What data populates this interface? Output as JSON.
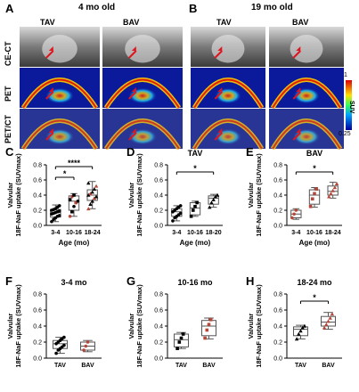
{
  "image_panels": {
    "A": {
      "letter": "A",
      "title": "4 mo old",
      "cols": [
        "TAV",
        "BAV"
      ]
    },
    "B": {
      "letter": "B",
      "title": "19 mo old",
      "cols": [
        "TAV",
        "BAV"
      ]
    },
    "rows": [
      "CE-CT",
      "PET",
      "PET/CT"
    ],
    "colorbar": {
      "max": "1",
      "min": "0.25",
      "label": "SUV"
    },
    "colors": {
      "ct_bg": "#2a2a2a",
      "pet_bg": "#0a1a9a",
      "arrow": "#e0141e"
    }
  },
  "chart_data": [
    {
      "letter": "C",
      "type": "box",
      "title": "",
      "categories": [
        "3-4",
        "10-16",
        "18-24"
      ],
      "ylabel_1": "Valvular",
      "ylabel_2": "18F-NaF uptake (SUVmax)",
      "xlabel": "Age (mo)",
      "ylim": [
        0,
        0.8
      ],
      "yticks": [
        "0.0",
        "0.2",
        "0.4",
        "0.6",
        "0.8"
      ],
      "points": [
        [
          0.05,
          0.08,
          0.1,
          0.12,
          0.13,
          0.15,
          0.16,
          0.17,
          0.18,
          0.19,
          0.2,
          0.21,
          0.22,
          0.24,
          0.26
        ],
        [
          0.12,
          0.18,
          0.25,
          0.3,
          0.32,
          0.34,
          0.38,
          0.4
        ],
        [
          0.22,
          0.28,
          0.32,
          0.36,
          0.38,
          0.4,
          0.42,
          0.44,
          0.48,
          0.52,
          0.56
        ]
      ],
      "box": [
        [
          0.05,
          0.11,
          0.17,
          0.21,
          0.27
        ],
        [
          0.12,
          0.2,
          0.32,
          0.39,
          0.42
        ],
        [
          0.22,
          0.33,
          0.4,
          0.47,
          0.58
        ]
      ],
      "markers": [
        "circle",
        "mixed",
        "triangle"
      ],
      "sig": [
        {
          "from": 0,
          "to": 1,
          "label": "*"
        },
        {
          "from": 0,
          "to": 2,
          "label": "****"
        }
      ]
    },
    {
      "letter": "D",
      "type": "box",
      "title": "TAV",
      "categories": [
        "3-4",
        "10-16",
        "18-20"
      ],
      "ylabel_1": "Valvular",
      "ylabel_2": "18F-NaF uptake (SUVmax)",
      "xlabel": "Age (mo)",
      "ylim": [
        0,
        0.8
      ],
      "yticks": [
        "0.0",
        "0.2",
        "0.4",
        "0.6",
        "0.8"
      ],
      "points": [
        [
          0.06,
          0.1,
          0.12,
          0.14,
          0.16,
          0.18,
          0.2,
          0.22,
          0.24,
          0.26
        ],
        [
          0.12,
          0.2,
          0.25,
          0.3
        ],
        [
          0.24,
          0.3,
          0.34,
          0.38,
          0.4
        ]
      ],
      "box": [
        [
          0.06,
          0.12,
          0.18,
          0.22,
          0.26
        ],
        [
          0.12,
          0.14,
          0.23,
          0.3,
          0.32
        ],
        [
          0.24,
          0.28,
          0.36,
          0.39,
          0.41
        ]
      ],
      "markers": [
        "circle",
        "square",
        "triangle"
      ],
      "sig": [
        {
          "from": 0,
          "to": 2,
          "label": "*"
        }
      ]
    },
    {
      "letter": "E",
      "type": "box",
      "title": "BAV",
      "categories": [
        "3-4",
        "10-16",
        "18-24"
      ],
      "ylabel_1": "Valvular",
      "ylabel_2": "18F-NaF uptake (SUVmax)",
      "xlabel": "Age (mo)",
      "ylim": [
        0,
        0.8
      ],
      "yticks": [
        "0.0",
        "0.2",
        "0.4",
        "0.6",
        "0.8"
      ],
      "points": [
        [
          0.1,
          0.15,
          0.2
        ],
        [
          0.25,
          0.35,
          0.42,
          0.48
        ],
        [
          0.38,
          0.42,
          0.46,
          0.5,
          0.55
        ]
      ],
      "box": [
        [
          0.08,
          0.1,
          0.15,
          0.2,
          0.22
        ],
        [
          0.24,
          0.28,
          0.4,
          0.47,
          0.5
        ],
        [
          0.36,
          0.4,
          0.45,
          0.52,
          0.57
        ]
      ],
      "markers": [
        "circle",
        "square",
        "triangle"
      ],
      "sig": [
        {
          "from": 0,
          "to": 2,
          "label": "*"
        }
      ]
    },
    {
      "letter": "F",
      "type": "box",
      "title": "3-4 mo",
      "categories": [
        "TAV",
        "BAV"
      ],
      "ylabel_1": "Valvular",
      "ylabel_2": "18F-NaF uptake (SUVmax)",
      "xlabel": "",
      "ylim": [
        0,
        0.8
      ],
      "yticks": [
        "0.0",
        "0.2",
        "0.4",
        "0.6",
        "0.8"
      ],
      "points": [
        [
          0.06,
          0.1,
          0.12,
          0.14,
          0.16,
          0.18,
          0.2,
          0.22,
          0.24,
          0.26
        ],
        [
          0.1,
          0.15,
          0.2
        ]
      ],
      "box": [
        [
          0.06,
          0.12,
          0.18,
          0.22,
          0.26
        ],
        [
          0.08,
          0.1,
          0.15,
          0.2,
          0.22
        ]
      ],
      "markers": [
        "circle",
        "circle"
      ],
      "sig": []
    },
    {
      "letter": "G",
      "type": "box",
      "title": "10-16 mo",
      "categories": [
        "TAV",
        "BAV"
      ],
      "ylabel_1": "Valvular",
      "ylabel_2": "18F-NaF uptake (SUVmax)",
      "xlabel": "",
      "ylim": [
        0,
        0.8
      ],
      "yticks": [
        "0.0",
        "0.2",
        "0.4",
        "0.6",
        "0.8"
      ],
      "points": [
        [
          0.12,
          0.2,
          0.25,
          0.3
        ],
        [
          0.25,
          0.35,
          0.42,
          0.48
        ]
      ],
      "box": [
        [
          0.12,
          0.14,
          0.23,
          0.3,
          0.32
        ],
        [
          0.24,
          0.28,
          0.4,
          0.47,
          0.5
        ]
      ],
      "markers": [
        "square",
        "square"
      ],
      "sig": []
    },
    {
      "letter": "H",
      "type": "box",
      "title": "18-24 mo",
      "categories": [
        "TAV",
        "BAV"
      ],
      "ylabel_1": "Valvular",
      "ylabel_2": "18F-NaF uptake (SUVmax)",
      "xlabel": "",
      "ylim": [
        0,
        0.8
      ],
      "yticks": [
        "0.0",
        "0.2",
        "0.4",
        "0.6",
        "0.8"
      ],
      "points": [
        [
          0.24,
          0.3,
          0.34,
          0.38,
          0.4
        ],
        [
          0.38,
          0.42,
          0.46,
          0.5,
          0.55
        ]
      ],
      "box": [
        [
          0.24,
          0.28,
          0.36,
          0.39,
          0.41
        ],
        [
          0.36,
          0.4,
          0.45,
          0.52,
          0.57
        ]
      ],
      "markers": [
        "triangle",
        "triangle"
      ],
      "sig": [
        {
          "from": 0,
          "to": 1,
          "label": "*"
        }
      ]
    }
  ],
  "series_colors": {
    "tav": "#000000",
    "bav": "#b5473a"
  }
}
